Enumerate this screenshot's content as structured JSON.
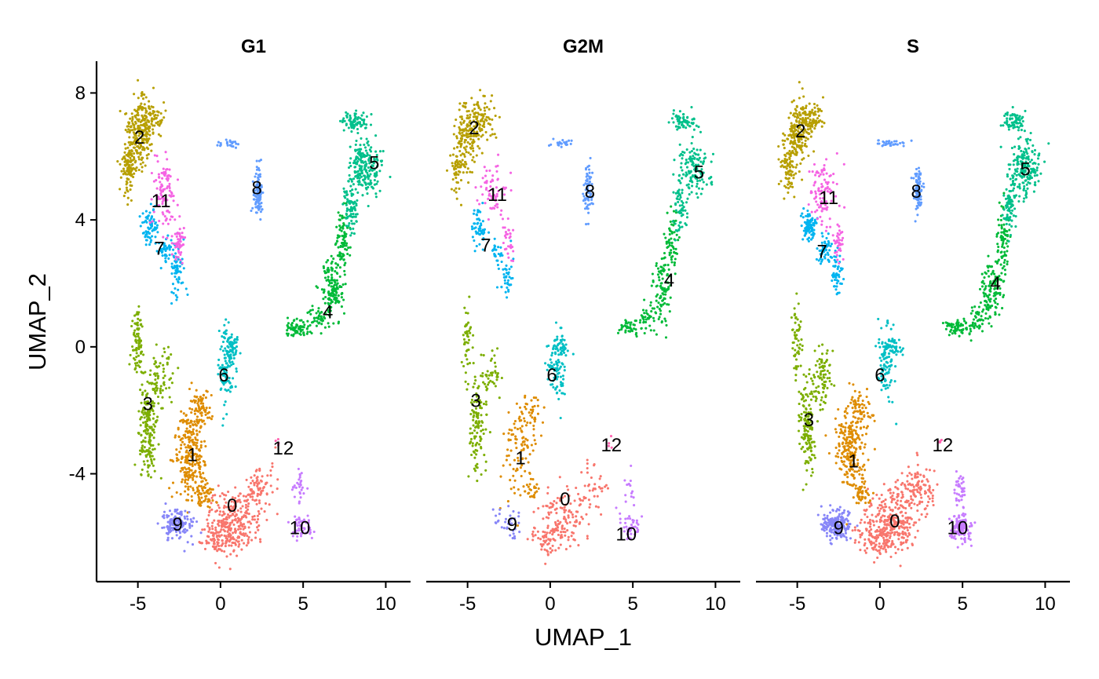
{
  "chart_data": {
    "type": "scatter",
    "subtype": "faceted UMAP embedding",
    "xlabel": "UMAP_1",
    "ylabel": "UMAP_2",
    "xlim": [
      -7.5,
      11.5
    ],
    "ylim": [
      -7.4,
      9
    ],
    "x_ticks": [
      -5,
      0,
      5,
      10
    ],
    "x_tick_labels": [
      "-5",
      "0",
      "5",
      "10"
    ],
    "y_ticks": [
      -4,
      0,
      4,
      8
    ],
    "y_tick_labels": [
      "-4",
      "0",
      "4",
      "8"
    ],
    "grid": false,
    "legend": "none",
    "point_size": 2.3,
    "cluster_colors": {
      "0": "#F8766D",
      "1": "#DE8C00",
      "2": "#B79F00",
      "3": "#7CAE00",
      "4": "#00BA38",
      "5": "#00C08B",
      "6": "#00BFC4",
      "7": "#00B4F0",
      "8": "#619CFF",
      "9": "#8786F8",
      "10": "#C77CFF",
      "11": "#F564E3",
      "12": "#FF64B0"
    },
    "clusters": [
      {
        "id": "0",
        "blobs": [
          [
            0.8,
            -5.5,
            1.3,
            0.9,
            1
          ],
          [
            2.3,
            -4.5,
            0.9,
            0.7,
            0.4
          ],
          [
            -0.3,
            -6.0,
            1.0,
            0.5,
            0.4
          ]
        ]
      },
      {
        "id": "1",
        "blobs": [
          [
            -1.8,
            -3.3,
            0.8,
            1.3,
            1
          ],
          [
            -1.2,
            -2.0,
            0.6,
            0.6,
            0.3
          ],
          [
            -1.0,
            -4.6,
            0.5,
            0.4,
            0.2
          ]
        ]
      },
      {
        "id": "2",
        "blobs": [
          [
            -5.0,
            6.7,
            0.7,
            1.0,
            1
          ],
          [
            -4.2,
            7.2,
            0.8,
            0.6,
            0.5
          ],
          [
            -5.6,
            5.6,
            0.4,
            0.8,
            0.4
          ]
        ]
      },
      {
        "id": "3",
        "blobs": [
          [
            -4.4,
            -2.5,
            0.5,
            1.4,
            1
          ],
          [
            -5.0,
            0.2,
            0.3,
            1.0,
            0.4
          ],
          [
            -3.5,
            -1.0,
            0.6,
            0.9,
            0.4
          ]
        ]
      },
      {
        "id": "4",
        "blobs": [
          [
            6.8,
            1.8,
            0.6,
            0.9,
            1
          ],
          [
            7.4,
            3.3,
            0.4,
            0.9,
            0.6
          ],
          [
            4.7,
            0.6,
            0.7,
            0.25,
            0.5
          ],
          [
            5.9,
            0.9,
            0.6,
            0.45,
            0.4
          ]
        ]
      },
      {
        "id": "5",
        "blobs": [
          [
            8.7,
            5.6,
            0.9,
            0.8,
            1
          ],
          [
            8.1,
            7.1,
            0.7,
            0.3,
            0.4
          ],
          [
            7.9,
            4.4,
            0.4,
            0.7,
            0.4
          ]
        ]
      },
      {
        "id": "6",
        "blobs": [
          [
            0.4,
            -0.6,
            0.45,
            1.1,
            1
          ],
          [
            0.7,
            0.0,
            0.5,
            0.3,
            0.4
          ]
        ]
      },
      {
        "id": "7",
        "blobs": [
          [
            -4.3,
            3.8,
            0.4,
            0.5,
            1
          ],
          [
            -2.6,
            2.3,
            0.35,
            0.7,
            0.8
          ],
          [
            -3.3,
            3.0,
            0.4,
            0.4,
            0.5
          ]
        ]
      },
      {
        "id": "8",
        "blobs": [
          [
            2.3,
            4.9,
            0.25,
            0.7,
            1
          ],
          [
            0.6,
            6.4,
            0.8,
            0.1,
            0.35
          ]
        ]
      },
      {
        "id": "9",
        "blobs": [
          [
            -2.6,
            -5.6,
            0.8,
            0.45,
            1
          ]
        ]
      },
      {
        "id": "10",
        "blobs": [
          [
            4.9,
            -5.7,
            0.6,
            0.4,
            1
          ],
          [
            4.8,
            -4.5,
            0.35,
            0.5,
            0.4
          ]
        ]
      },
      {
        "id": "11",
        "blobs": [
          [
            -3.4,
            4.9,
            0.7,
            0.9,
            1
          ],
          [
            -2.5,
            3.3,
            0.3,
            0.6,
            0.4
          ]
        ]
      },
      {
        "id": "12",
        "blobs": [
          [
            3.6,
            -3.0,
            0.15,
            0.15,
            1
          ]
        ]
      }
    ],
    "panels": [
      {
        "title": "G1",
        "seed": 11,
        "counts": {
          "0": 420,
          "1": 380,
          "2": 380,
          "3": 340,
          "4": 340,
          "5": 360,
          "6": 150,
          "7": 180,
          "8": 130,
          "9": 150,
          "10": 80,
          "11": 160,
          "12": 5
        },
        "labels": [
          {
            "text": "0",
            "x": 0.7,
            "y": -5.0
          },
          {
            "text": "1",
            "x": -1.7,
            "y": -3.4
          },
          {
            "text": "2",
            "x": -4.9,
            "y": 6.6
          },
          {
            "text": "3",
            "x": -4.4,
            "y": -1.8
          },
          {
            "text": "4",
            "x": 6.5,
            "y": 1.1
          },
          {
            "text": "5",
            "x": 9.3,
            "y": 5.8
          },
          {
            "text": "6",
            "x": 0.2,
            "y": -0.9
          },
          {
            "text": "7",
            "x": -3.7,
            "y": 3.1
          },
          {
            "text": "8",
            "x": 2.2,
            "y": 5.0
          },
          {
            "text": "9",
            "x": -2.6,
            "y": -5.6
          },
          {
            "text": "10",
            "x": 4.8,
            "y": -5.7
          },
          {
            "text": "11",
            "x": -3.6,
            "y": 4.6
          },
          {
            "text": "12",
            "x": 3.8,
            "y": -3.2
          }
        ]
      },
      {
        "title": "G2M",
        "seed": 23,
        "counts": {
          "0": 220,
          "1": 150,
          "2": 280,
          "3": 200,
          "4": 230,
          "5": 250,
          "6": 120,
          "7": 110,
          "8": 90,
          "9": 35,
          "10": 60,
          "11": 90,
          "12": 4
        },
        "labels": [
          {
            "text": "0",
            "x": 0.9,
            "y": -4.8
          },
          {
            "text": "1",
            "x": -1.8,
            "y": -3.5
          },
          {
            "text": "2",
            "x": -4.6,
            "y": 6.9
          },
          {
            "text": "3",
            "x": -4.5,
            "y": -1.7
          },
          {
            "text": "4",
            "x": 7.2,
            "y": 2.1
          },
          {
            "text": "5",
            "x": 9.0,
            "y": 5.5
          },
          {
            "text": "6",
            "x": 0.1,
            "y": -0.9
          },
          {
            "text": "7",
            "x": -3.9,
            "y": 3.2
          },
          {
            "text": "8",
            "x": 2.4,
            "y": 4.9
          },
          {
            "text": "9",
            "x": -2.3,
            "y": -5.6
          },
          {
            "text": "10",
            "x": 4.6,
            "y": -5.9
          },
          {
            "text": "11",
            "x": -3.2,
            "y": 4.8
          },
          {
            "text": "12",
            "x": 3.7,
            "y": -3.1
          }
        ]
      },
      {
        "title": "S",
        "seed": 37,
        "counts": {
          "0": 480,
          "1": 330,
          "2": 340,
          "3": 280,
          "4": 300,
          "5": 330,
          "6": 140,
          "7": 190,
          "8": 120,
          "9": 200,
          "10": 180,
          "11": 140,
          "12": 5
        },
        "labels": [
          {
            "text": "0",
            "x": 0.9,
            "y": -5.5
          },
          {
            "text": "1",
            "x": -1.6,
            "y": -3.6
          },
          {
            "text": "2",
            "x": -4.8,
            "y": 6.8
          },
          {
            "text": "3",
            "x": -4.3,
            "y": -2.3
          },
          {
            "text": "4",
            "x": 7.0,
            "y": 2.0
          },
          {
            "text": "5",
            "x": 8.8,
            "y": 5.6
          },
          {
            "text": "6",
            "x": 0.0,
            "y": -0.9
          },
          {
            "text": "7",
            "x": -3.5,
            "y": 3.0
          },
          {
            "text": "8",
            "x": 2.2,
            "y": 4.9
          },
          {
            "text": "9",
            "x": -2.5,
            "y": -5.7
          },
          {
            "text": "10",
            "x": 4.7,
            "y": -5.7
          },
          {
            "text": "11",
            "x": -3.1,
            "y": 4.7
          },
          {
            "text": "12",
            "x": 3.8,
            "y": -3.1
          }
        ]
      }
    ]
  }
}
